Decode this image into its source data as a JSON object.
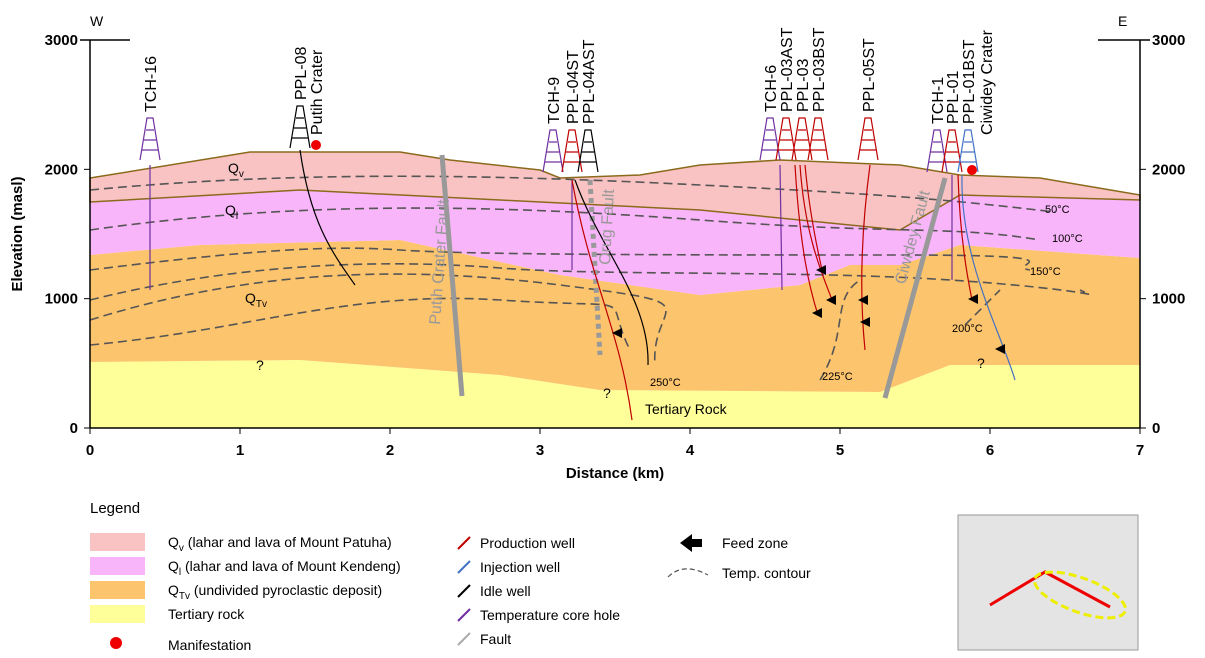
{
  "axes": {
    "x_label": "Distance (km)",
    "y_label": "Elevation (masl)",
    "xlim": [
      0,
      7
    ],
    "ylim": [
      0,
      3000
    ],
    "xticks": [
      0,
      1,
      2,
      3,
      4,
      5,
      6,
      7
    ],
    "yticks": [
      0,
      1000,
      2000,
      3000
    ]
  },
  "directions": {
    "west": "W",
    "east": "E"
  },
  "wells": [
    {
      "label": "TCH-16",
      "color": "#7030a0"
    },
    {
      "label": "PPL-08",
      "color": "#000000"
    },
    {
      "label": "Putih Crater",
      "color": "#e00000"
    },
    {
      "label": "TCH-9",
      "color": "#7030a0"
    },
    {
      "label": "PPL-04ST",
      "color": "#c00000"
    },
    {
      "label": "PPL-04AST",
      "color": "#000000"
    },
    {
      "label": "TCH-6",
      "color": "#7030a0"
    },
    {
      "label": "PPL-03AST",
      "color": "#c00000"
    },
    {
      "label": "PPL-03",
      "color": "#c00000"
    },
    {
      "label": "PPL-03BST",
      "color": "#c00000"
    },
    {
      "label": "PPL-05ST",
      "color": "#c00000"
    },
    {
      "label": "TCH-1",
      "color": "#7030a0"
    },
    {
      "label": "PPL-01",
      "color": "#c00000"
    },
    {
      "label": "PPL-01BST",
      "color": "#4472c4"
    },
    {
      "label": "Ciwidey Crater",
      "color": "#e00000"
    }
  ],
  "units": [
    {
      "base": "Q",
      "sub": "v"
    },
    {
      "base": "Q",
      "sub": "l"
    },
    {
      "base": "Q",
      "sub": "Tv"
    }
  ],
  "faults": [
    "Putih Crater Fault",
    "Orug Fault",
    "Ciwidey Fault"
  ],
  "temperatures": [
    "50°C",
    "100°C",
    "150°C",
    "200°C",
    "225°C",
    "250°C"
  ],
  "annotations": [
    "Tertiary Rock",
    "?",
    "?",
    "?"
  ],
  "legend": {
    "title": "Legend",
    "layers": [
      {
        "base": "Q",
        "sub": "v",
        "text": " (lahar and lava of Mount Patuha)"
      },
      {
        "base": "Q",
        "sub": "l",
        "text": " (lahar and lava of Mount Kendeng)"
      },
      {
        "base": "Q",
        "sub": "Tv",
        "text": " (undivided pyroclastic deposit)"
      },
      {
        "text": "Tertiary rock"
      }
    ],
    "manifestation": "Manifestation",
    "wells": [
      "Production well",
      "Injection well",
      "Idle well",
      "Temperature core hole",
      "Fault"
    ],
    "other": [
      "Feed zone",
      "Temp. contour"
    ]
  }
}
